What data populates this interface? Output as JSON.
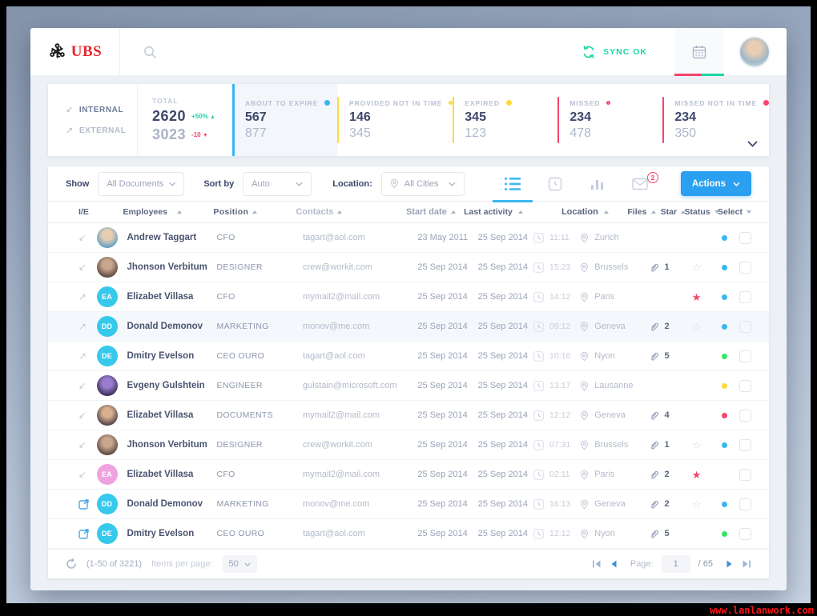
{
  "header": {
    "logo_text": "UBS",
    "sync_label": "SYNC OK"
  },
  "stats": {
    "internal_label": "INTERNAL",
    "external_label": "EXTERNAL",
    "total_label": "TOTAL",
    "total_internal": "2620",
    "total_internal_delta": "+50%",
    "total_external": "3023",
    "total_external_delta": "-10",
    "cards": [
      {
        "label": "ABOUT TO EXPIRE",
        "value1": "567",
        "value2": "877",
        "color": "#38b6f2",
        "dot": "filled",
        "highlight": true
      },
      {
        "label": "PROVIDED NOT IN TIME",
        "value1": "146",
        "value2": "345",
        "color": "#ffd93b",
        "dot": "hollow",
        "highlight": false
      },
      {
        "label": "EXPIRED",
        "value1": "345",
        "value2": "123",
        "color": "#ffd93b",
        "dot": "filled",
        "highlight": false
      },
      {
        "label": "MISSED",
        "value1": "234",
        "value2": "478",
        "color": "#f8446c",
        "dot": "hollow",
        "highlight": false
      },
      {
        "label": "MISSED NOT IN TIME",
        "value1": "234",
        "value2": "350",
        "color": "#f8446c",
        "dot": "filled",
        "highlight": false
      }
    ]
  },
  "filters": {
    "show_label": "Show",
    "show_value": "All Documents",
    "sort_label": "Sort by",
    "sort_value": "Auto",
    "location_label": "Location:",
    "location_value": "All Cities",
    "mail_badge": "2",
    "actions_label": "Actions"
  },
  "colors": {
    "blue": "#38b6f2",
    "green": "#37e65d",
    "yellow": "#ffd93b",
    "red": "#f8446c"
  },
  "table": {
    "columns": [
      {
        "label": "I/E",
        "caret": ""
      },
      {
        "label": "Employees",
        "caret": "up"
      },
      {
        "label": "Position",
        "caret": "up"
      },
      {
        "label": "Contacts",
        "caret": "up"
      },
      {
        "label": "Start date",
        "caret": "up"
      },
      {
        "label": "Last activity",
        "caret": "up"
      },
      {
        "label": "Location",
        "caret": "up"
      },
      {
        "label": "Files",
        "caret": "up"
      },
      {
        "label": "Star",
        "caret": "up"
      },
      {
        "label": "Status",
        "caret": "down"
      },
      {
        "label": "Select",
        "caret": "down"
      }
    ],
    "rows": [
      {
        "ie": "in",
        "avatar": {
          "type": "photo",
          "c1": "#e9cdb2",
          "c2": "#5a9ec6"
        },
        "name": "Andrew Taggart",
        "position": "CFO",
        "contact": "tagart@aol.com",
        "start": "23 May 2011",
        "last_date": "25 Sep 2014",
        "last_time": "11:11",
        "location": "Zurich",
        "files": "",
        "star": "none",
        "status": "blue",
        "highlight": false
      },
      {
        "ie": "in",
        "avatar": {
          "type": "photo",
          "c1": "#c9a68e",
          "c2": "#55413c"
        },
        "name": "Jhonson Verbitum",
        "position": "DESIGNER",
        "contact": "crew@workit.com",
        "start": "25 Sep 2014",
        "last_date": "25 Sep 2014",
        "last_time": "15:23",
        "location": "Brussels",
        "files": "1",
        "star": "outline",
        "status": "blue",
        "highlight": false
      },
      {
        "ie": "out",
        "avatar": {
          "type": "initials",
          "text": "EA",
          "bg": "#36c9ec"
        },
        "name": "Elizabet Villasa",
        "position": "CFO",
        "contact": "mymail2@mail.com",
        "start": "25 Sep 2014",
        "last_date": "25 Sep 2014",
        "last_time": "14:12",
        "location": "Paris",
        "files": "",
        "star": "filled",
        "status": "blue",
        "highlight": false
      },
      {
        "ie": "out",
        "avatar": {
          "type": "initials",
          "text": "DD",
          "bg": "#36c9ec"
        },
        "name": "Donald Demonov",
        "position": "MARKETING",
        "contact": "monov@me.com",
        "start": "25 Sep 2014",
        "last_date": "25 Sep 2014",
        "last_time": "09:12",
        "location": "Geneva",
        "files": "2",
        "star": "outline",
        "status": "blue",
        "highlight": true
      },
      {
        "ie": "out",
        "avatar": {
          "type": "initials",
          "text": "DE",
          "bg": "#36c9ec"
        },
        "name": "Dmitry Evelson",
        "position": "CEO OURO",
        "contact": "tagart@aol.com",
        "start": "25 Sep 2014",
        "last_date": "25 Sep 2014",
        "last_time": "10:16",
        "location": "Nyon",
        "files": "5",
        "star": "none",
        "status": "green",
        "highlight": false
      },
      {
        "ie": "in",
        "avatar": {
          "type": "photo",
          "c1": "#9a7cd0",
          "c2": "#342b50"
        },
        "name": "Evgeny Gulshtein",
        "position": "ENGINEER",
        "contact": "gulstain@microsoft.com",
        "start": "25 Sep 2014",
        "last_date": "25 Sep 2014",
        "last_time": "13:17",
        "location": "Lausanne",
        "files": "",
        "star": "none",
        "status": "yellow",
        "highlight": false
      },
      {
        "ie": "in",
        "avatar": {
          "type": "photo",
          "c1": "#d8b090",
          "c2": "#4a3c44"
        },
        "name": "Elizabet Villasa",
        "position": "DOCUMENTS",
        "contact": "mymail2@mail.com",
        "start": "25 Sep 2014",
        "last_date": "25 Sep 2014",
        "last_time": "12:12",
        "location": "Geneva",
        "files": "4",
        "star": "none",
        "status": "red",
        "highlight": false
      },
      {
        "ie": "in",
        "avatar": {
          "type": "photo",
          "c1": "#c9a68e",
          "c2": "#55413c"
        },
        "name": "Jhonson Verbitum",
        "position": "DESIGNER",
        "contact": "crew@workit.com",
        "start": "25 Sep 2014",
        "last_date": "25 Sep 2014",
        "last_time": "07:31",
        "location": "Brussels",
        "files": "1",
        "star": "outline",
        "status": "blue",
        "highlight": false
      },
      {
        "ie": "in",
        "avatar": {
          "type": "initials",
          "text": "EA",
          "bg": "#f0a2e0"
        },
        "name": "Elizabet Villasa",
        "position": "CFO",
        "contact": "mymail2@mail.com",
        "start": "25 Sep 2014",
        "last_date": "25 Sep 2014",
        "last_time": "02:11",
        "location": "Paris",
        "files": "2",
        "star": "filled",
        "status": "none",
        "highlight": false
      },
      {
        "ie": "link",
        "avatar": {
          "type": "initials",
          "text": "DD",
          "bg": "#36c9ec"
        },
        "name": "Donald Demonov",
        "position": "MARKETING",
        "contact": "monov@me.com",
        "start": "25 Sep 2014",
        "last_date": "25 Sep 2014",
        "last_time": "16:13",
        "location": "Geneva",
        "files": "2",
        "star": "outline",
        "status": "blue",
        "highlight": false
      },
      {
        "ie": "link",
        "avatar": {
          "type": "initials",
          "text": "DE",
          "bg": "#36c9ec"
        },
        "name": "Dmitry Evelson",
        "position": "CEO OURO",
        "contact": "tagart@aol.com",
        "start": "25 Sep 2014",
        "last_date": "25 Sep 2014",
        "last_time": "12:12",
        "location": "Nyon",
        "files": "5",
        "star": "none",
        "status": "green",
        "highlight": false
      }
    ]
  },
  "footer": {
    "range": "(1-50 of 3221)",
    "items_per_page_label": "Items per page:",
    "items_per_page": "50",
    "page_label": "Page:",
    "page": "1",
    "total_pages": "/ 65"
  },
  "watermark": "www.lanlanwork.com"
}
